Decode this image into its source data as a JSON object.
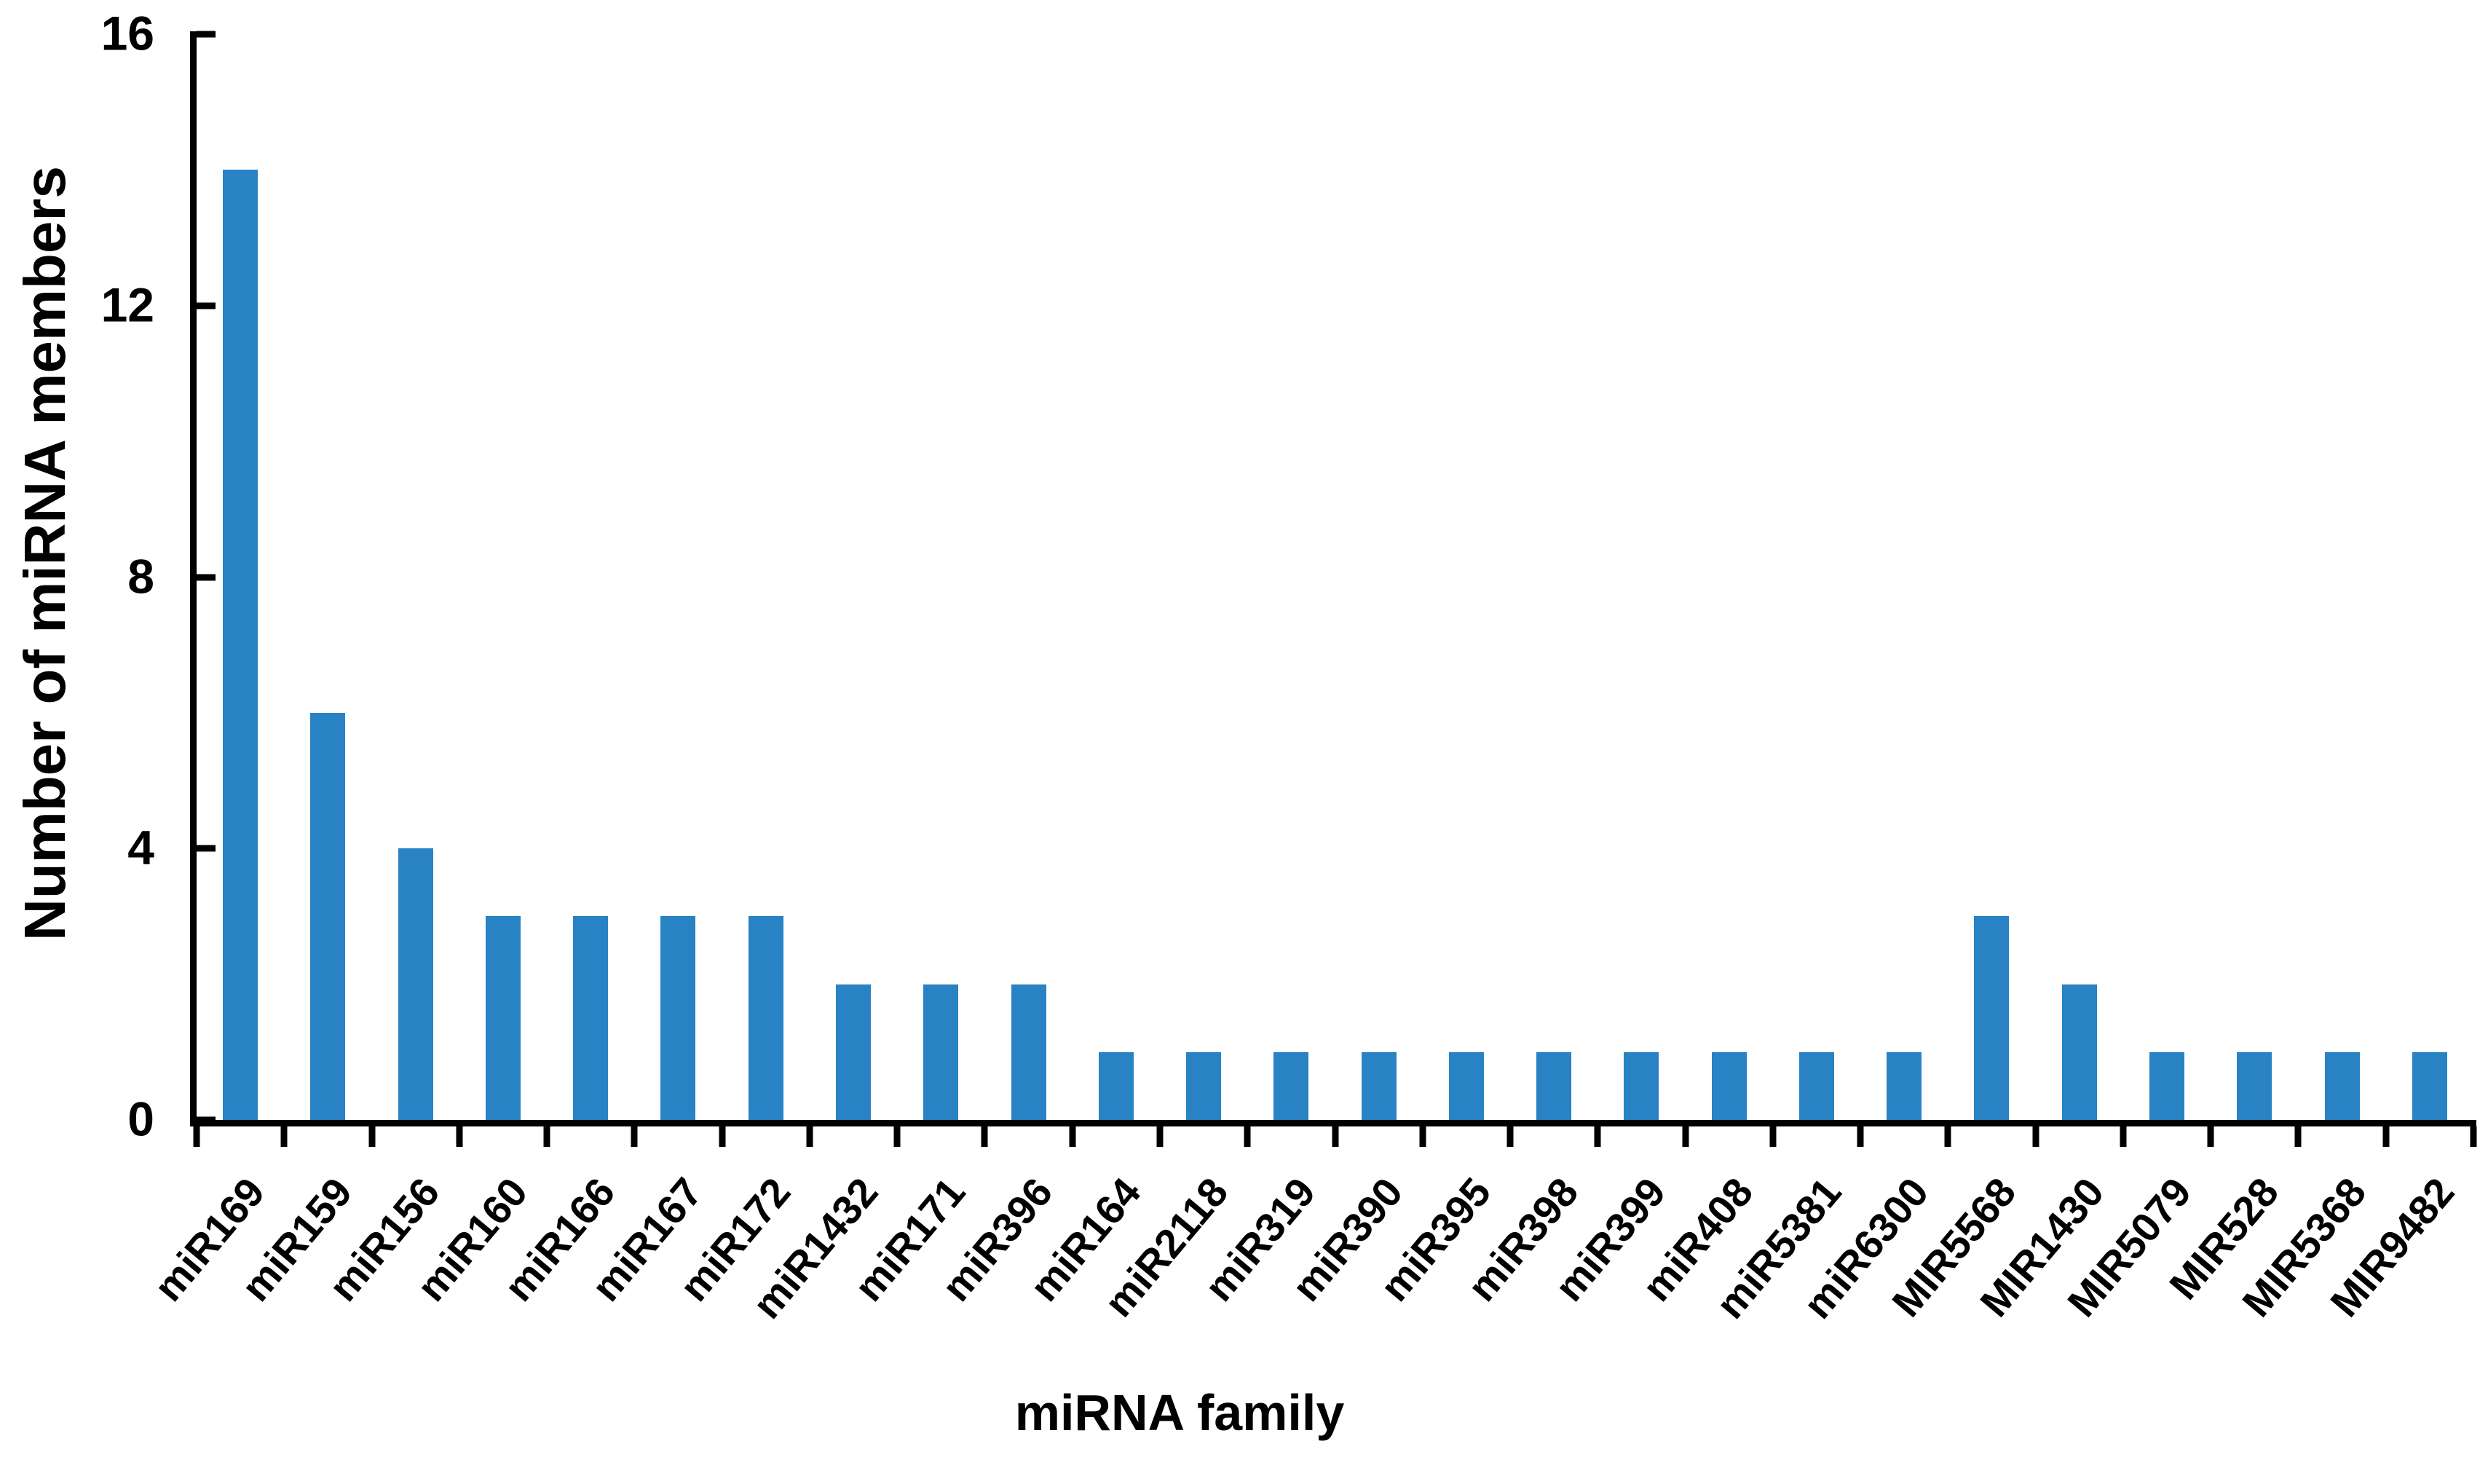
{
  "chart_data": {
    "type": "bar",
    "title": "",
    "xlabel": "miRNA family",
    "ylabel": "Number of miRNA members",
    "ylim": [
      0,
      16
    ],
    "yticks": [
      0,
      4,
      8,
      12,
      16
    ],
    "grid": false,
    "legend_position": "none",
    "bar_color": "#2882C3",
    "axis_color": "#000000",
    "categories": [
      "miR169",
      "miR159",
      "miR156",
      "miR160",
      "miR166",
      "miR167",
      "miR172",
      "miR1432",
      "miR171",
      "miR396",
      "miR164",
      "miR2118",
      "miR319",
      "miR390",
      "miR395",
      "miR398",
      "miR399",
      "miR408",
      "miR5381",
      "miR6300",
      "MIR5568",
      "MIR1430",
      "MIR5079",
      "MIR528",
      "MIR5368",
      "MIR9482"
    ],
    "values": [
      14,
      6,
      4,
      3,
      3,
      3,
      3,
      2,
      2,
      2,
      1,
      1,
      1,
      1,
      1,
      1,
      1,
      1,
      1,
      1,
      3,
      2,
      1,
      1,
      1,
      1
    ]
  }
}
